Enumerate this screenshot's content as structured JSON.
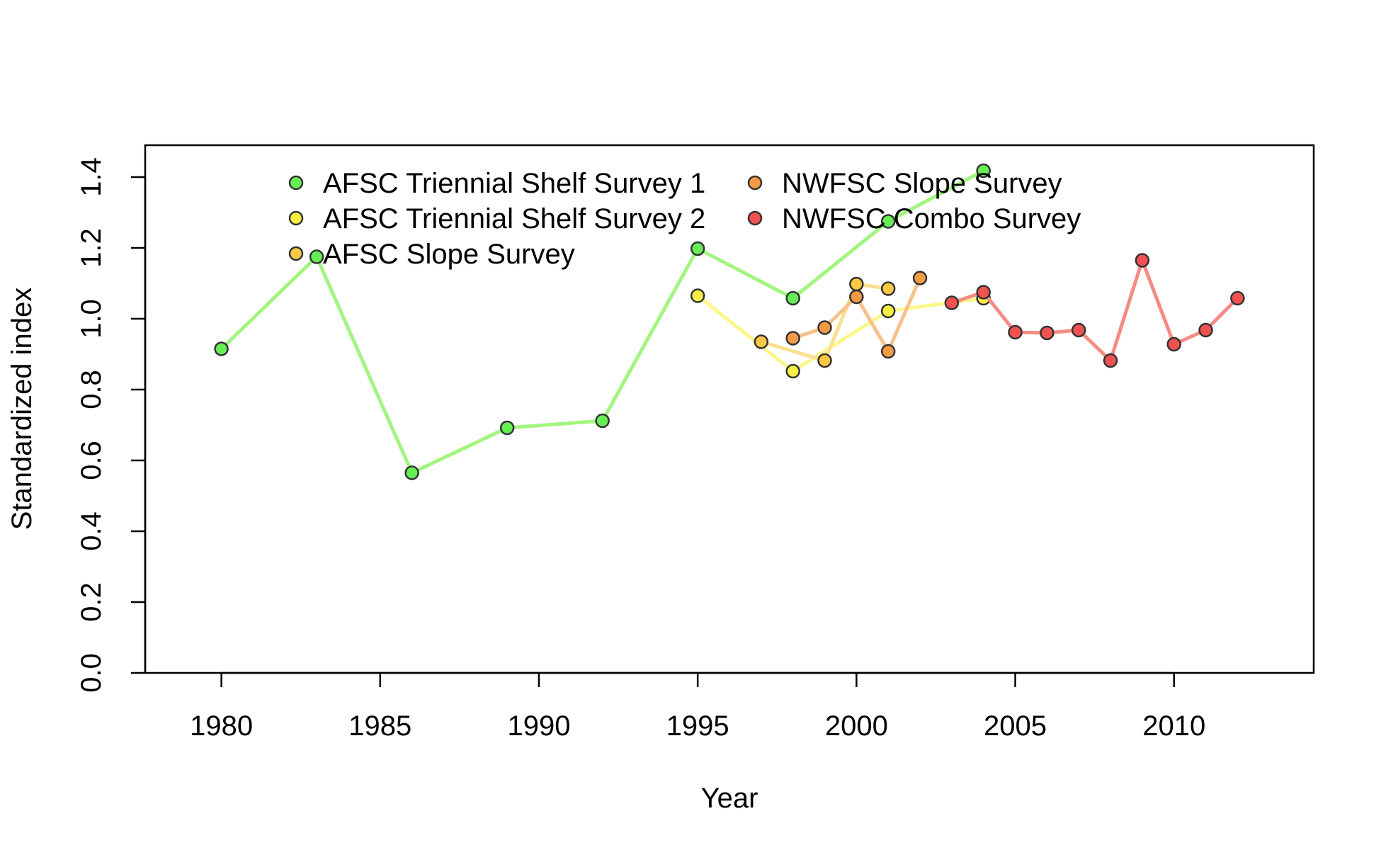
{
  "chart_data": {
    "type": "line",
    "xlabel": "Year",
    "ylabel": "Standardized index",
    "xlim": [
      1977.6,
      2014.4
    ],
    "ylim": [
      0,
      1.49
    ],
    "x_ticks": [
      1980,
      1985,
      1990,
      1995,
      2000,
      2005,
      2010
    ],
    "y_ticks": [
      0.0,
      0.2,
      0.4,
      0.6,
      0.8,
      1.0,
      1.2,
      1.4
    ],
    "x_tick_labels": [
      "1980",
      "1985",
      "1990",
      "1995",
      "2000",
      "2005",
      "2010"
    ],
    "y_tick_labels": [
      "0.0",
      "0.2",
      "0.4",
      "0.6",
      "0.8",
      "1.0",
      "1.2",
      "1.4"
    ],
    "legend_position": "top",
    "series": [
      {
        "name": "AFSC Triennial Shelf Survey 1",
        "color": "#66ee55",
        "line_color": "#a2f57f",
        "x": [
          1980,
          1983,
          1986,
          1989,
          1992,
          1995,
          1998,
          2001,
          2004
        ],
        "y": [
          0.915,
          1.175,
          0.565,
          0.692,
          0.712,
          1.198,
          1.058,
          1.275,
          1.418
        ]
      },
      {
        "name": "AFSC Triennial Shelf Survey 2",
        "color": "#f8ee44",
        "line_color": "#fbf78a",
        "x": [
          1995,
          1998,
          2001,
          2004
        ],
        "y": [
          1.065,
          0.852,
          1.022,
          1.058
        ]
      },
      {
        "name": "AFSC Slope Survey",
        "color": "#f9c844",
        "line_color": "#fbdf90",
        "x": [
          1997,
          1999,
          2000,
          2001
        ],
        "y": [
          0.935,
          0.882,
          1.098,
          1.085
        ]
      },
      {
        "name": "NWFSC Slope Survey",
        "color": "#f59a44",
        "line_color": "#f8c08a",
        "x": [
          1998,
          1999,
          2000,
          2001,
          2002
        ],
        "y": [
          0.945,
          0.975,
          1.062,
          0.908,
          1.115
        ]
      },
      {
        "name": "NWFSC Combo Survey",
        "color": "#f15151",
        "line_color": "#f58c84",
        "x": [
          2003,
          2004,
          2005,
          2006,
          2007,
          2008,
          2009,
          2010,
          2011,
          2012
        ],
        "y": [
          1.045,
          1.075,
          0.962,
          0.96,
          0.968,
          0.882,
          1.165,
          0.928,
          0.968,
          1.058
        ]
      }
    ]
  }
}
